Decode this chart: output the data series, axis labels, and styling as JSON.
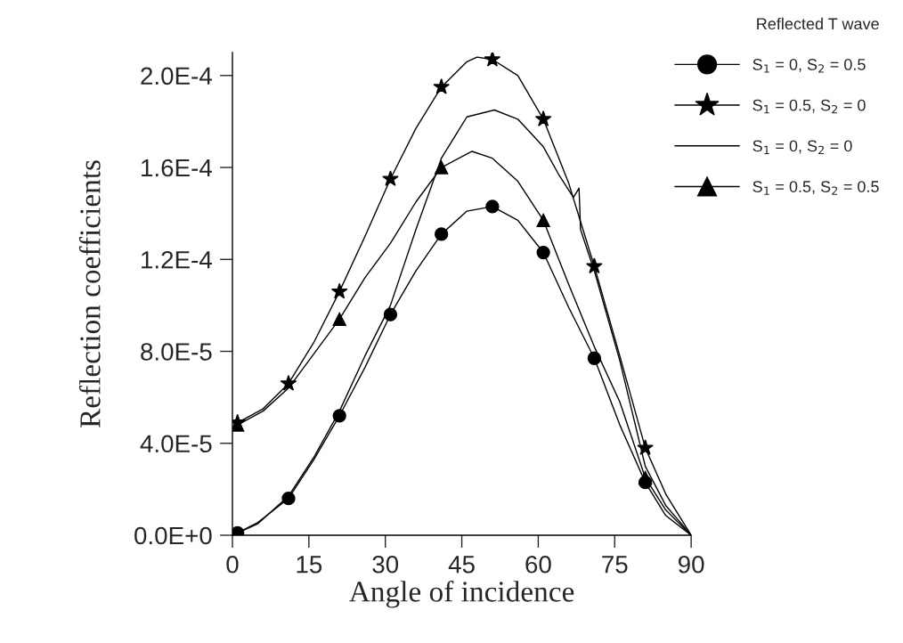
{
  "chart_data": {
    "type": "line",
    "xlabel": "Angle of incidence",
    "ylabel": "Reflection coefficients",
    "legend_title": "Reflected T wave",
    "xlim": [
      0,
      90
    ],
    "xticks": [
      0,
      15,
      30,
      45,
      60,
      75,
      90
    ],
    "ylim": [
      0,
      0.00021
    ],
    "yticks": [
      {
        "value": 0,
        "label": "0.0E+0"
      },
      {
        "value": 4e-05,
        "label": "4.0E-5"
      },
      {
        "value": 8e-05,
        "label": "8.0E-5"
      },
      {
        "value": 0.00012,
        "label": "1.2E-4"
      },
      {
        "value": 0.00016,
        "label": "1.6E-4"
      },
      {
        "value": 0.0002,
        "label": "2.0E-4"
      }
    ],
    "grid": false,
    "legend": "top right",
    "line_style": "solid",
    "series": [
      {
        "color": "#000000",
        "marker": "none",
        "x": [
          0,
          1,
          5,
          11,
          16,
          21,
          26,
          31,
          36,
          41,
          46,
          51,
          56,
          61,
          66,
          71,
          76,
          81,
          85,
          90
        ],
        "values": [
          0,
          1e-06,
          5.6e-06,
          1.6e-05,
          3.3e-05,
          5.2e-05,
          7.3e-05,
          9.6e-05,
          0.000115,
          0.000131,
          0.000141,
          0.000143,
          0.000137,
          0.000123,
          9.9e-05,
          7.7e-05,
          4.8e-05,
          2.3e-05,
          8.6e-06,
          0
        ]
      },
      {
        "type": "scatter",
        "name": "S$_{1}$ = 0, S$_{2}$ = 0.5",
        "color": "#000000",
        "marker": "circle",
        "x": [
          1,
          11,
          21,
          31,
          41,
          51,
          61,
          71,
          81
        ],
        "values": [
          1e-06,
          1.6e-05,
          5.2e-05,
          9.6e-05,
          0.000131,
          0.000143,
          0.000123,
          7.7e-05,
          2.3e-05
        ]
      },
      {
        "color": "#000000",
        "marker": "none",
        "x": [
          1,
          6,
          11,
          16,
          21,
          26,
          31,
          36,
          41,
          46,
          48,
          51,
          56,
          61,
          66,
          71,
          76,
          81,
          85,
          90
        ],
        "values": [
          4.9e-05,
          5.5e-05,
          6.6e-05,
          8.4e-05,
          0.000106,
          0.00013,
          0.000155,
          0.000177,
          0.000195,
          0.000206,
          0.000208,
          0.000207,
          0.0002,
          0.000181,
          0.000153,
          0.000117,
          7.8e-05,
          3.8e-05,
          1.8e-05,
          0
        ]
      },
      {
        "type": "scatter",
        "name": "S$_{1}$ = 0.5, S$_{2}$ = 0",
        "color": "#000000",
        "marker": "star",
        "x": [
          1,
          11,
          21,
          31,
          41,
          51,
          61,
          71,
          81
        ],
        "values": [
          4.9e-05,
          6.6e-05,
          0.000106,
          0.000155,
          0.000195,
          0.000207,
          0.000181,
          0.000117,
          3.8e-05
        ]
      },
      {
        "name": "S$_{1}$ = 0, S$_{2}$ = 0",
        "color": "#000000",
        "marker": "none",
        "x": [
          0,
          5,
          11,
          16,
          21,
          26,
          31,
          36,
          41,
          46,
          51.4,
          56,
          61,
          64,
          66.9,
          68,
          68.3,
          71,
          76,
          81,
          85,
          90
        ],
        "values": [
          0,
          5e-06,
          1.7e-05,
          3.4e-05,
          5.4e-05,
          7.8e-05,
          0.0001,
          0.000133,
          0.000164,
          0.000182,
          0.000185,
          0.000181,
          0.000169,
          0.000157,
          0.000147,
          0.000151,
          0.000133,
          0.000115,
          7.6e-05,
          3e-05,
          1.3e-05,
          0
        ]
      },
      {
        "color": "#000000",
        "marker": "none",
        "x": [
          1,
          6,
          11,
          16,
          21,
          26,
          31,
          36,
          41,
          47,
          51,
          56,
          61,
          66,
          71,
          76,
          81,
          85,
          90
        ],
        "values": [
          4.8e-05,
          5.4e-05,
          6.4e-05,
          7.9e-05,
          9.4e-05,
          0.000112,
          0.000127,
          0.000145,
          0.00016,
          0.000167,
          0.000164,
          0.000154,
          0.000137,
          0.000109,
          8.2e-05,
          5.8e-05,
          2.5e-05,
          1.1e-05,
          0
        ]
      },
      {
        "type": "scatter",
        "name": "S$_{1}$ = 0.5, S$_{2}$ = 0.5",
        "color": "#000000",
        "marker": "triangle",
        "x": [
          1,
          21,
          41,
          61,
          81
        ],
        "values": [
          4.8e-05,
          9.4e-05,
          0.00016,
          0.000137,
          2.5e-05
        ]
      }
    ]
  }
}
